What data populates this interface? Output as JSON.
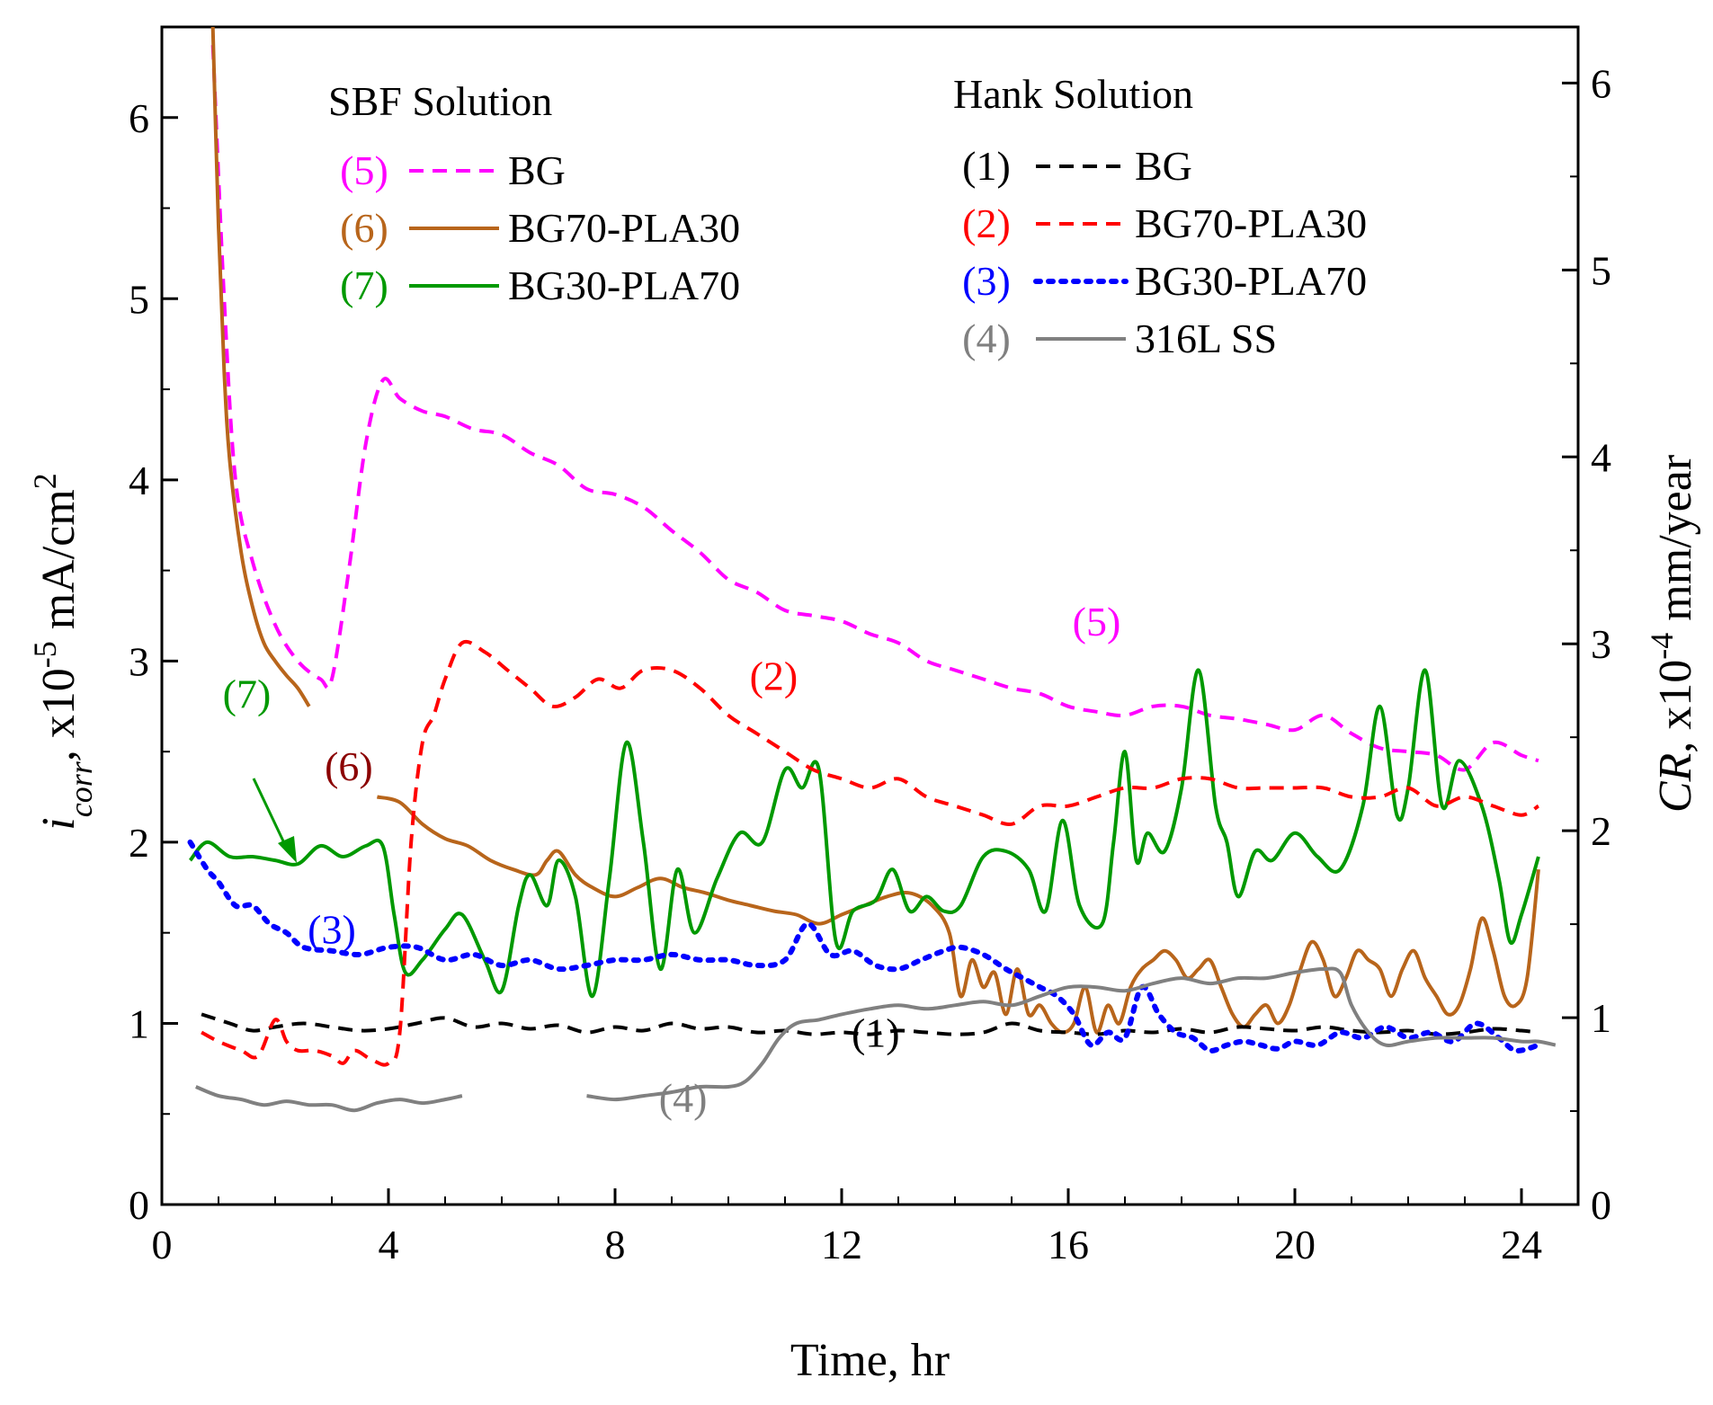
{
  "chart_data": {
    "type": "line",
    "xlabel": "Time, hr",
    "ylabel": {
      "main": "i",
      "subscript": "corr",
      "rest": "x10",
      "exponent": "-5",
      "unit": "mA/cm",
      "unit_exponent": "2"
    },
    "y2label": {
      "main": "CR",
      "rest": ", x10",
      "exponent": "-4",
      "unit": "mm/year"
    },
    "xlim": [
      0,
      25
    ],
    "ylim": [
      0,
      6.5
    ],
    "y2lim": [
      0,
      6.3
    ],
    "xticks": [
      "0",
      "4",
      "8",
      "12",
      "16",
      "20",
      "24"
    ],
    "yticks": [
      "0",
      "1",
      "2",
      "3",
      "4",
      "5",
      "6"
    ],
    "y2ticks": [
      "0",
      "1",
      "2",
      "3",
      "4",
      "5",
      "6"
    ],
    "legend_groups": [
      {
        "title": "SBF Solution",
        "position": "top-left",
        "entries": [
          {
            "id": "5",
            "marker": "(5)",
            "label": "BG",
            "color": "#ff00ff",
            "dash": "dashed"
          },
          {
            "id": "6",
            "marker": "(6)",
            "label": "BG70-PLA30",
            "color": "#b8651b",
            "dash": "solid"
          },
          {
            "id": "7",
            "marker": "(7)",
            "label": "BG30-PLA70",
            "color": "#009900",
            "dash": "solid"
          }
        ]
      },
      {
        "title": "Hank Solution",
        "position": "top-right",
        "entries": [
          {
            "id": "1",
            "marker": "(1)",
            "label": "BG",
            "color": "#000000",
            "dash": "dashed"
          },
          {
            "id": "2",
            "marker": "(2)",
            "label": "BG70-PLA30",
            "color": "#ff0000",
            "dash": "dashed"
          },
          {
            "id": "3",
            "marker": "(3)",
            "label": "BG30-PLA70",
            "color": "#0000ff",
            "dash": "dotted"
          },
          {
            "id": "4",
            "marker": "(4)",
            "label": "316L SS",
            "color": "#808080",
            "dash": "solid"
          }
        ]
      }
    ],
    "series": [
      {
        "id": "5",
        "color": "#ff00ff",
        "dash": "dashed",
        "x": [
          0.9,
          1.1,
          1.3,
          1.6,
          2.0,
          2.4,
          2.8,
          3.0,
          3.3,
          3.6,
          3.9,
          4.2,
          4.6,
          5.0,
          5.5,
          6.0,
          6.5,
          7.0,
          7.5,
          8.0,
          8.5,
          9.0,
          9.5,
          10.0,
          10.5,
          11.0,
          11.5,
          12.0,
          12.5,
          13.0,
          13.5,
          14.0,
          14.5,
          15.0,
          15.5,
          16.0,
          16.5,
          17.0,
          17.5,
          18.0,
          18.5,
          19.0,
          19.5,
          20.0,
          20.5,
          21.0,
          21.5,
          22.0,
          22.5,
          23.0,
          23.5,
          24.0,
          24.3
        ],
        "y": [
          6.4,
          5.0,
          4.0,
          3.55,
          3.2,
          3.0,
          2.9,
          2.9,
          3.5,
          4.2,
          4.55,
          4.45,
          4.38,
          4.35,
          4.28,
          4.25,
          4.15,
          4.08,
          3.95,
          3.92,
          3.85,
          3.72,
          3.6,
          3.45,
          3.38,
          3.28,
          3.25,
          3.22,
          3.15,
          3.1,
          3.0,
          2.95,
          2.9,
          2.85,
          2.82,
          2.75,
          2.72,
          2.7,
          2.75,
          2.75,
          2.7,
          2.68,
          2.65,
          2.62,
          2.7,
          2.6,
          2.52,
          2.5,
          2.48,
          2.4,
          2.55,
          2.48,
          2.45
        ]
      },
      {
        "id": "6a",
        "color": "#b8651b",
        "dash": "solid",
        "x": [
          0.9,
          1.0,
          1.1,
          1.2,
          1.4,
          1.6,
          1.8,
          2.0,
          2.2,
          2.4,
          2.6
        ],
        "y": [
          6.5,
          5.4,
          4.6,
          4.1,
          3.6,
          3.3,
          3.1,
          3.0,
          2.92,
          2.85,
          2.75
        ]
      },
      {
        "id": "6b",
        "color": "#b8651b",
        "dash": "solid",
        "x": [
          3.8,
          4.2,
          4.6,
          5.0,
          5.4,
          5.8,
          6.2,
          6.6,
          6.8,
          7.0,
          7.3,
          7.6,
          8.0,
          8.4,
          8.8,
          9.2,
          9.6,
          10.0,
          10.4,
          10.8,
          11.2,
          11.6,
          12.0,
          12.4,
          12.8,
          13.2,
          13.6,
          13.9,
          14.1,
          14.3,
          14.5,
          14.7,
          14.9,
          15.1,
          15.3,
          15.5,
          15.7,
          15.9,
          16.1,
          16.3,
          16.5,
          16.7,
          16.9,
          17.1,
          17.3,
          17.5,
          17.7,
          17.9,
          18.1,
          18.3,
          18.5,
          18.7,
          18.9,
          19.1,
          19.3,
          19.5,
          19.7,
          19.9,
          20.1,
          20.3,
          20.5,
          20.7,
          20.9,
          21.1,
          21.3,
          21.5,
          21.7,
          21.9,
          22.1,
          22.3,
          22.5,
          22.7,
          22.9,
          23.1,
          23.3,
          23.5,
          23.7,
          23.9,
          24.1,
          24.3
        ],
        "y": [
          2.25,
          2.22,
          2.1,
          2.02,
          1.98,
          1.9,
          1.85,
          1.82,
          1.9,
          1.95,
          1.82,
          1.75,
          1.7,
          1.75,
          1.8,
          1.75,
          1.72,
          1.68,
          1.65,
          1.62,
          1.6,
          1.55,
          1.6,
          1.65,
          1.7,
          1.72,
          1.65,
          1.5,
          1.15,
          1.35,
          1.2,
          1.28,
          1.05,
          1.3,
          1.05,
          1.1,
          1.0,
          0.95,
          1.0,
          1.2,
          0.95,
          1.1,
          1.0,
          1.2,
          1.3,
          1.35,
          1.4,
          1.35,
          1.25,
          1.3,
          1.35,
          1.2,
          1.05,
          0.98,
          1.05,
          1.1,
          1.0,
          1.1,
          1.3,
          1.45,
          1.35,
          1.15,
          1.25,
          1.4,
          1.35,
          1.3,
          1.15,
          1.3,
          1.4,
          1.25,
          1.15,
          1.05,
          1.1,
          1.3,
          1.58,
          1.4,
          1.15,
          1.1,
          1.25,
          1.85
        ]
      },
      {
        "id": "7",
        "color": "#009900",
        "dash": "solid",
        "x": [
          0.5,
          0.8,
          1.2,
          1.6,
          2.0,
          2.4,
          2.8,
          3.2,
          3.6,
          3.9,
          4.1,
          4.3,
          4.6,
          5.0,
          5.3,
          5.7,
          6.0,
          6.3,
          6.5,
          6.8,
          7.0,
          7.3,
          7.6,
          7.9,
          8.2,
          8.5,
          8.8,
          9.1,
          9.4,
          9.8,
          10.2,
          10.6,
          11.0,
          11.3,
          11.6,
          11.9,
          12.2,
          12.6,
          12.9,
          13.2,
          13.5,
          13.8,
          14.1,
          14.5,
          14.9,
          15.3,
          15.6,
          15.9,
          16.2,
          16.6,
          16.8,
          17.0,
          17.2,
          17.4,
          17.7,
          18.0,
          18.3,
          18.6,
          18.8,
          19.0,
          19.3,
          19.6,
          20.0,
          20.4,
          20.8,
          21.2,
          21.5,
          21.8,
          22.0,
          22.3,
          22.6,
          22.9,
          23.3,
          23.6,
          23.8,
          24.0,
          24.3
        ],
        "y": [
          1.9,
          2.0,
          1.92,
          1.92,
          1.9,
          1.88,
          1.98,
          1.92,
          1.98,
          1.98,
          1.6,
          1.28,
          1.35,
          1.52,
          1.6,
          1.35,
          1.18,
          1.65,
          1.82,
          1.65,
          1.9,
          1.7,
          1.15,
          1.8,
          2.55,
          2.0,
          1.3,
          1.85,
          1.5,
          1.8,
          2.05,
          2.0,
          2.4,
          2.3,
          2.4,
          1.45,
          1.62,
          1.68,
          1.85,
          1.62,
          1.7,
          1.62,
          1.65,
          1.92,
          1.95,
          1.85,
          1.62,
          2.12,
          1.65,
          1.55,
          2.0,
          2.5,
          1.9,
          2.05,
          1.95,
          2.3,
          2.95,
          2.2,
          2.0,
          1.7,
          1.95,
          1.9,
          2.05,
          1.92,
          1.85,
          2.2,
          2.75,
          2.15,
          2.3,
          2.95,
          2.2,
          2.45,
          2.2,
          1.8,
          1.45,
          1.6,
          1.92
        ]
      },
      {
        "id": "1",
        "color": "#000000",
        "dash": "dashed",
        "x": [
          0.7,
          1.2,
          1.6,
          2.0,
          2.5,
          3.0,
          3.5,
          4.0,
          4.5,
          5.0,
          5.5,
          6.0,
          6.5,
          7.0,
          7.5,
          8.0,
          8.5,
          9.0,
          9.5,
          10.0,
          10.5,
          11.0,
          11.5,
          12.0,
          12.5,
          13.0,
          13.5,
          14.0,
          14.5,
          15.0,
          15.5,
          16.0,
          16.5,
          17.0,
          17.5,
          18.0,
          18.5,
          19.0,
          19.5,
          20.0,
          20.5,
          21.0,
          21.5,
          22.0,
          22.5,
          23.0,
          23.5,
          24.0,
          24.3
        ],
        "y": [
          1.05,
          1.0,
          0.96,
          0.98,
          1.0,
          0.98,
          0.96,
          0.97,
          1.0,
          1.03,
          0.98,
          1.0,
          0.97,
          0.99,
          0.95,
          0.98,
          0.96,
          1.0,
          0.97,
          0.98,
          0.95,
          0.96,
          0.94,
          0.95,
          0.94,
          0.96,
          0.95,
          0.94,
          0.95,
          1.0,
          0.96,
          0.95,
          0.94,
          0.96,
          0.95,
          0.97,
          0.95,
          0.98,
          0.97,
          0.96,
          0.98,
          0.96,
          0.95,
          0.96,
          0.94,
          0.95,
          0.97,
          0.96,
          0.95
        ]
      },
      {
        "id": "2",
        "color": "#ff0000",
        "dash": "dashed",
        "x": [
          0.7,
          1.0,
          1.4,
          1.7,
          2.0,
          2.2,
          2.4,
          2.7,
          3.0,
          3.2,
          3.4,
          3.7,
          4.0,
          4.2,
          4.4,
          4.6,
          4.8,
          5.0,
          5.3,
          5.7,
          6.1,
          6.5,
          6.9,
          7.3,
          7.7,
          8.1,
          8.5,
          9.0,
          9.5,
          10.0,
          10.5,
          11.0,
          11.5,
          12.0,
          12.5,
          13.0,
          13.5,
          14.0,
          14.5,
          15.0,
          15.5,
          16.0,
          16.5,
          17.0,
          17.5,
          18.0,
          18.5,
          19.0,
          19.5,
          20.0,
          20.5,
          21.0,
          21.5,
          22.0,
          22.5,
          23.0,
          23.5,
          24.0,
          24.3
        ],
        "y": [
          0.95,
          0.9,
          0.85,
          0.82,
          1.02,
          0.9,
          0.85,
          0.85,
          0.82,
          0.78,
          0.85,
          0.8,
          0.78,
          0.95,
          2.0,
          2.55,
          2.7,
          2.9,
          3.1,
          3.05,
          2.95,
          2.85,
          2.75,
          2.8,
          2.9,
          2.85,
          2.95,
          2.95,
          2.85,
          2.7,
          2.6,
          2.5,
          2.4,
          2.35,
          2.3,
          2.35,
          2.25,
          2.2,
          2.15,
          2.1,
          2.2,
          2.2,
          2.25,
          2.3,
          2.3,
          2.35,
          2.35,
          2.3,
          2.3,
          2.3,
          2.3,
          2.25,
          2.25,
          2.3,
          2.2,
          2.25,
          2.2,
          2.15,
          2.2
        ]
      },
      {
        "id": "3",
        "color": "#0000ff",
        "dash": "dotted",
        "x": [
          0.5,
          0.8,
          1.0,
          1.3,
          1.6,
          1.9,
          2.2,
          2.5,
          3.0,
          3.5,
          4.0,
          4.5,
          5.0,
          5.5,
          6.0,
          6.5,
          7.0,
          7.5,
          8.0,
          8.5,
          9.0,
          9.5,
          10.0,
          10.5,
          11.0,
          11.4,
          11.8,
          12.2,
          12.6,
          13.0,
          13.4,
          13.8,
          14.1,
          14.5,
          14.9,
          15.2,
          15.5,
          15.8,
          16.1,
          16.4,
          16.7,
          17.0,
          17.3,
          17.6,
          17.9,
          18.2,
          18.5,
          18.8,
          19.1,
          19.4,
          19.7,
          20.0,
          20.4,
          20.8,
          21.2,
          21.6,
          22.0,
          22.4,
          22.8,
          23.2,
          23.6,
          23.9,
          24.3
        ],
        "y": [
          2.0,
          1.85,
          1.78,
          1.65,
          1.65,
          1.55,
          1.5,
          1.42,
          1.4,
          1.38,
          1.42,
          1.42,
          1.35,
          1.38,
          1.32,
          1.35,
          1.3,
          1.32,
          1.35,
          1.35,
          1.38,
          1.35,
          1.35,
          1.32,
          1.35,
          1.55,
          1.38,
          1.4,
          1.32,
          1.3,
          1.35,
          1.4,
          1.42,
          1.38,
          1.3,
          1.25,
          1.2,
          1.15,
          1.05,
          0.88,
          0.95,
          0.92,
          1.2,
          1.05,
          0.95,
          0.92,
          0.85,
          0.88,
          0.9,
          0.88,
          0.86,
          0.9,
          0.88,
          0.95,
          0.92,
          0.98,
          0.92,
          0.95,
          0.9,
          1.0,
          0.92,
          0.85,
          0.88
        ]
      },
      {
        "id": "4a",
        "color": "#808080",
        "dash": "solid",
        "x": [
          0.6,
          1.0,
          1.4,
          1.8,
          2.2,
          2.6,
          3.0,
          3.4,
          3.8,
          4.2,
          4.6,
          5.0,
          5.3
        ],
        "y": [
          0.65,
          0.6,
          0.58,
          0.55,
          0.57,
          0.55,
          0.55,
          0.52,
          0.56,
          0.58,
          0.56,
          0.58,
          0.6
        ]
      },
      {
        "id": "4b",
        "color": "#808080",
        "dash": "solid",
        "x": [
          7.5,
          8.0,
          8.5,
          9.0,
          9.5,
          10.0,
          10.3,
          10.6,
          10.9,
          11.2,
          11.6,
          12.0,
          12.5,
          13.0,
          13.5,
          14.0,
          14.5,
          15.0,
          15.5,
          16.0,
          16.5,
          17.0,
          17.5,
          18.0,
          18.5,
          19.0,
          19.5,
          20.0,
          20.5,
          20.8,
          21.0,
          21.3,
          21.6,
          22.0,
          22.5,
          23.0,
          23.5,
          24.0,
          24.3,
          24.6
        ],
        "y": [
          0.6,
          0.58,
          0.6,
          0.62,
          0.65,
          0.65,
          0.68,
          0.78,
          0.92,
          1.0,
          1.02,
          1.05,
          1.08,
          1.1,
          1.08,
          1.1,
          1.12,
          1.1,
          1.15,
          1.2,
          1.2,
          1.18,
          1.22,
          1.25,
          1.22,
          1.25,
          1.25,
          1.28,
          1.3,
          1.28,
          1.1,
          0.95,
          0.88,
          0.9,
          0.92,
          0.92,
          0.92,
          0.9,
          0.9,
          0.88
        ]
      }
    ],
    "curve_labels": [
      {
        "text": "(5)",
        "color": "#ff00ff"
      },
      {
        "text": "(2)",
        "color": "#ff0000"
      },
      {
        "text": "(7)",
        "color": "#009900"
      },
      {
        "text": "(6)",
        "color": "#8b0000"
      },
      {
        "text": "(3)",
        "color": "#0000ff"
      },
      {
        "text": "(1)",
        "color": "#000000"
      },
      {
        "text": "(4)",
        "color": "#808080"
      }
    ],
    "grid": false
  }
}
